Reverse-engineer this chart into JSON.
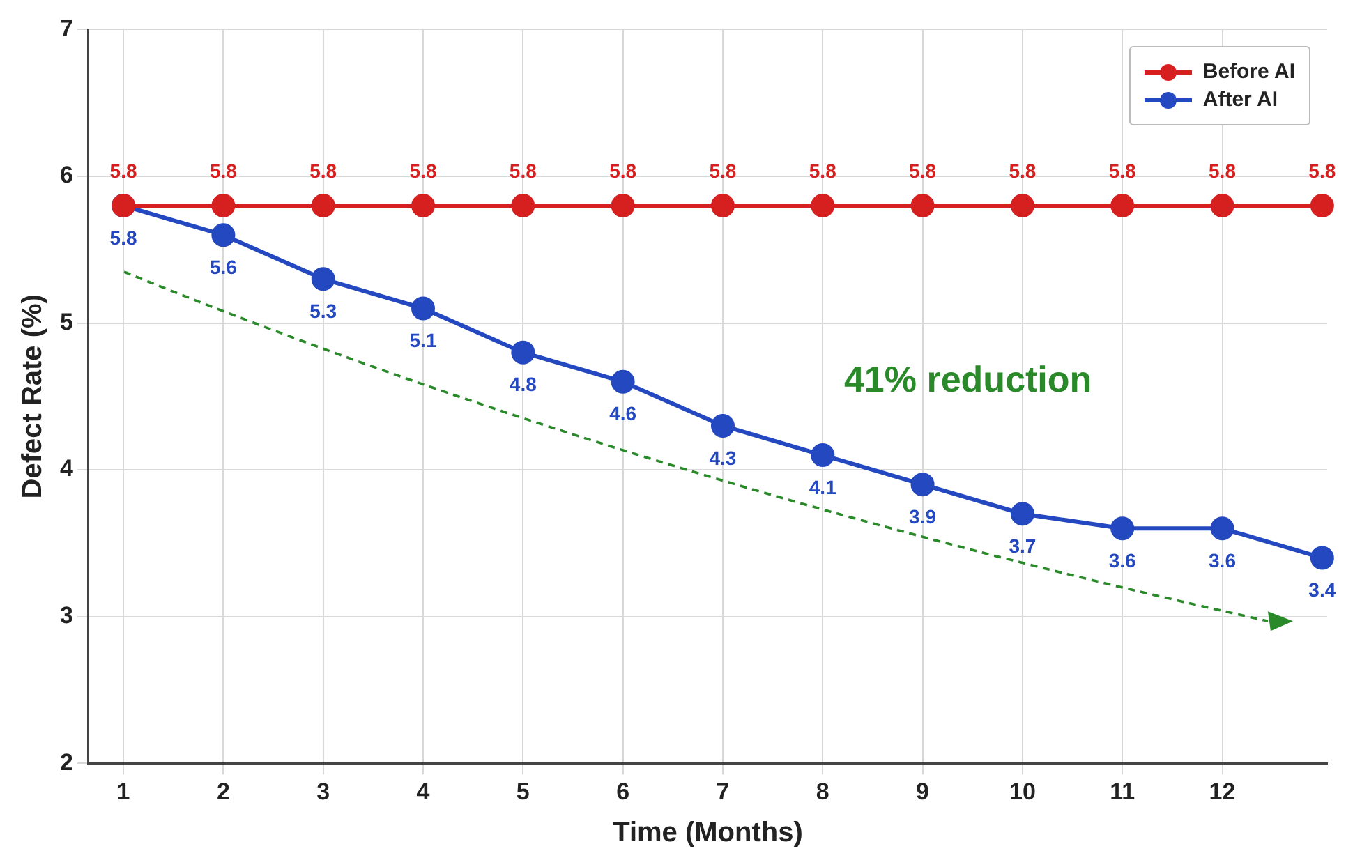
{
  "chart_data": {
    "type": "line",
    "xlabel": "Time (Months)",
    "ylabel": "Defect Rate (%)",
    "x": [
      1,
      2,
      3,
      4,
      5,
      6,
      7,
      8,
      9,
      10,
      11,
      12,
      13
    ],
    "series": [
      {
        "name": "Before AI",
        "color": "#d62020",
        "values": [
          5.8,
          5.8,
          5.8,
          5.8,
          5.8,
          5.8,
          5.8,
          5.8,
          5.8,
          5.8,
          5.8,
          5.8,
          5.8
        ]
      },
      {
        "name": "After AI",
        "color": "#2448c0",
        "values": [
          5.8,
          5.6,
          5.3,
          5.1,
          4.8,
          4.6,
          4.3,
          4.1,
          3.9,
          3.7,
          3.6,
          3.6,
          3.4
        ]
      }
    ],
    "xlim": [
      0.65,
      13.05
    ],
    "xticks": [
      1,
      2,
      3,
      4,
      5,
      6,
      7,
      8,
      9,
      10,
      11,
      12
    ],
    "ylim": [
      2,
      7
    ],
    "yticks": [
      2,
      3,
      4,
      5,
      6,
      7
    ],
    "grid": true,
    "legend": "top right",
    "marker": "circle",
    "line_style": "solid",
    "data_labels": true,
    "annotations": [
      "41% reduction"
    ]
  }
}
